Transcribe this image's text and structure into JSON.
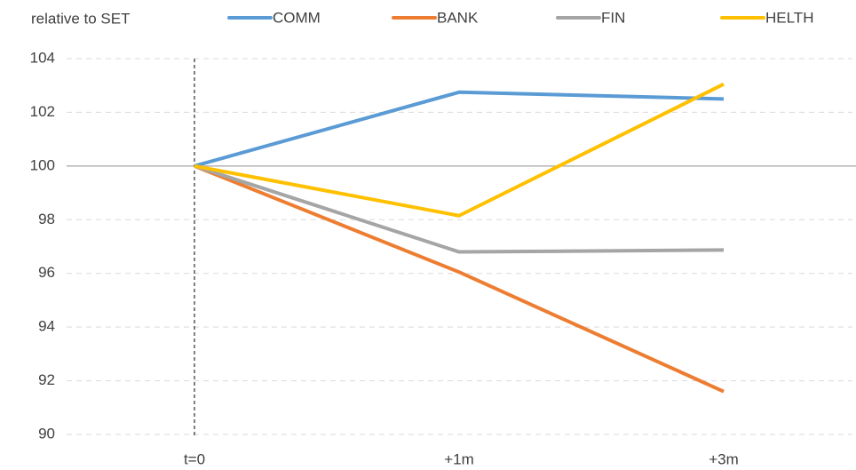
{
  "chart_data": {
    "type": "line",
    "ylabel": "relative to SET",
    "categories": [
      "t=0",
      "+1m",
      "+3m"
    ],
    "series": [
      {
        "name": "COMM",
        "color": "#5b9bd5",
        "values": [
          100,
          102.75,
          102.5
        ]
      },
      {
        "name": "BANK",
        "color": "#ed7d31",
        "values": [
          100,
          96.05,
          91.6
        ]
      },
      {
        "name": "FIN",
        "color": "#a5a5a5",
        "values": [
          100,
          96.8,
          96.87
        ]
      },
      {
        "name": "HELTH",
        "color": "#ffc000",
        "values": [
          100,
          98.15,
          103.05
        ]
      }
    ],
    "ylim": [
      90,
      104
    ],
    "yticks": [
      90,
      92,
      94,
      96,
      98,
      100,
      102,
      104
    ],
    "grid": true,
    "axis_at": 100,
    "legend": "top"
  }
}
